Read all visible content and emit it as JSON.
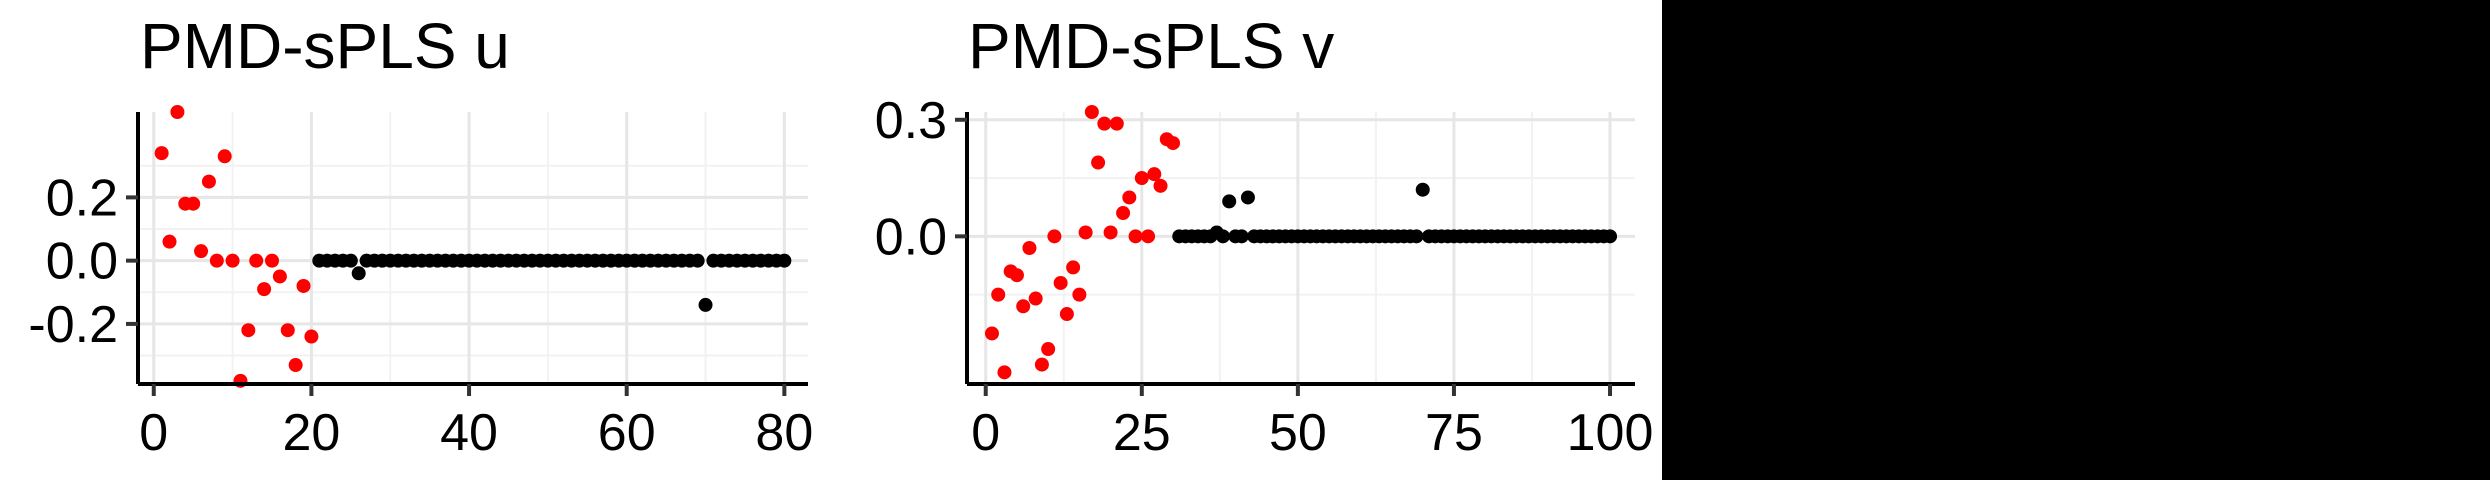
{
  "chart_data": [
    {
      "type": "scatter",
      "title": "PMD-sPLS u",
      "xlabel": "",
      "ylabel": "",
      "xlim": [
        -2,
        83
      ],
      "ylim": [
        -0.39,
        0.47
      ],
      "xticks": [
        0,
        20,
        40,
        60,
        80
      ],
      "yticks": [
        -0.2,
        0.0,
        0.2
      ],
      "ytick_labels": [
        "-0.2",
        "0.0",
        "0.2"
      ],
      "grid": true,
      "series": [
        {
          "color": "#ff0000",
          "points": [
            [
              1,
              0.34
            ],
            [
              2,
              0.06
            ],
            [
              3,
              0.47
            ],
            [
              4,
              0.18
            ],
            [
              5,
              0.18
            ],
            [
              6,
              0.03
            ],
            [
              7,
              0.25
            ],
            [
              8,
              0.0
            ],
            [
              9,
              0.33
            ],
            [
              10,
              0.0
            ],
            [
              11,
              -0.38
            ],
            [
              12,
              -0.22
            ],
            [
              13,
              0.0
            ],
            [
              14,
              -0.09
            ],
            [
              15,
              0.0
            ],
            [
              16,
              -0.05
            ],
            [
              17,
              -0.22
            ],
            [
              18,
              -0.33
            ],
            [
              19,
              -0.08
            ],
            [
              20,
              -0.24
            ]
          ]
        },
        {
          "color": "#000000",
          "points": [
            [
              21,
              0
            ],
            [
              22,
              0
            ],
            [
              23,
              0
            ],
            [
              24,
              0
            ],
            [
              25,
              0
            ],
            [
              26,
              -0.04
            ],
            [
              27,
              0
            ],
            [
              28,
              0
            ],
            [
              29,
              0
            ],
            [
              30,
              0
            ],
            [
              31,
              0
            ],
            [
              32,
              0
            ],
            [
              33,
              0
            ],
            [
              34,
              0
            ],
            [
              35,
              0
            ],
            [
              36,
              0
            ],
            [
              37,
              0
            ],
            [
              38,
              0
            ],
            [
              39,
              0
            ],
            [
              40,
              0
            ],
            [
              41,
              0
            ],
            [
              42,
              0
            ],
            [
              43,
              0
            ],
            [
              44,
              0
            ],
            [
              45,
              0
            ],
            [
              46,
              0
            ],
            [
              47,
              0
            ],
            [
              48,
              0
            ],
            [
              49,
              0
            ],
            [
              50,
              0
            ],
            [
              51,
              0
            ],
            [
              52,
              0
            ],
            [
              53,
              0
            ],
            [
              54,
              0
            ],
            [
              55,
              0
            ],
            [
              56,
              0
            ],
            [
              57,
              0
            ],
            [
              58,
              0
            ],
            [
              59,
              0
            ],
            [
              60,
              0
            ],
            [
              61,
              0
            ],
            [
              62,
              0
            ],
            [
              63,
              0
            ],
            [
              64,
              0
            ],
            [
              65,
              0
            ],
            [
              66,
              0
            ],
            [
              67,
              0
            ],
            [
              68,
              0
            ],
            [
              69,
              0
            ],
            [
              70,
              -0.14
            ],
            [
              71,
              0
            ],
            [
              72,
              0
            ],
            [
              73,
              0
            ],
            [
              74,
              0
            ],
            [
              75,
              0
            ],
            [
              76,
              0
            ],
            [
              77,
              0
            ],
            [
              78,
              0
            ],
            [
              79,
              0
            ],
            [
              80,
              0
            ]
          ]
        }
      ]
    },
    {
      "type": "scatter",
      "title": "PMD-sPLS v",
      "xlabel": "",
      "ylabel": "",
      "xlim": [
        -3,
        104
      ],
      "ylim": [
        -0.38,
        0.32
      ],
      "xticks": [
        0,
        25,
        50,
        75,
        100
      ],
      "yticks": [
        0.0,
        0.3
      ],
      "ytick_labels": [
        "0.0",
        "0.3"
      ],
      "grid": true,
      "series": [
        {
          "color": "#ff0000",
          "points": [
            [
              1,
              -0.25
            ],
            [
              2,
              -0.15
            ],
            [
              3,
              -0.35
            ],
            [
              4,
              -0.09
            ],
            [
              5,
              -0.1
            ],
            [
              6,
              -0.18
            ],
            [
              7,
              -0.03
            ],
            [
              8,
              -0.16
            ],
            [
              9,
              -0.33
            ],
            [
              10,
              -0.29
            ],
            [
              11,
              0.0
            ],
            [
              12,
              -0.12
            ],
            [
              13,
              -0.2
            ],
            [
              14,
              -0.08
            ],
            [
              15,
              -0.15
            ],
            [
              16,
              0.01
            ],
            [
              17,
              0.32
            ],
            [
              18,
              0.19
            ],
            [
              19,
              0.29
            ],
            [
              20,
              0.01
            ],
            [
              21,
              0.29
            ],
            [
              22,
              0.06
            ],
            [
              23,
              0.1
            ],
            [
              24,
              0.0
            ],
            [
              25,
              0.15
            ],
            [
              26,
              0.0
            ],
            [
              27,
              0.16
            ],
            [
              28,
              0.13
            ],
            [
              29,
              0.25
            ],
            [
              30,
              0.24
            ]
          ]
        },
        {
          "color": "#000000",
          "points": [
            [
              31,
              0
            ],
            [
              32,
              0
            ],
            [
              33,
              0
            ],
            [
              34,
              0
            ],
            [
              35,
              0
            ],
            [
              36,
              0
            ],
            [
              37,
              0.01
            ],
            [
              38,
              0
            ],
            [
              39,
              0.09
            ],
            [
              40,
              0
            ],
            [
              41,
              0
            ],
            [
              42,
              0.1
            ],
            [
              43,
              0
            ],
            [
              44,
              0
            ],
            [
              45,
              0
            ],
            [
              46,
              0
            ],
            [
              47,
              0
            ],
            [
              48,
              0
            ],
            [
              49,
              0
            ],
            [
              50,
              0
            ],
            [
              51,
              0
            ],
            [
              52,
              0
            ],
            [
              53,
              0
            ],
            [
              54,
              0
            ],
            [
              55,
              0
            ],
            [
              56,
              0
            ],
            [
              57,
              0
            ],
            [
              58,
              0
            ],
            [
              59,
              0
            ],
            [
              60,
              0
            ],
            [
              61,
              0
            ],
            [
              62,
              0
            ],
            [
              63,
              0
            ],
            [
              64,
              0
            ],
            [
              65,
              0
            ],
            [
              66,
              0
            ],
            [
              67,
              0
            ],
            [
              68,
              0
            ],
            [
              69,
              0
            ],
            [
              70,
              0.12
            ],
            [
              71,
              0
            ],
            [
              72,
              0
            ],
            [
              73,
              0
            ],
            [
              74,
              0
            ],
            [
              75,
              0
            ],
            [
              76,
              0
            ],
            [
              77,
              0
            ],
            [
              78,
              0
            ],
            [
              79,
              0
            ],
            [
              80,
              0
            ],
            [
              81,
              0
            ],
            [
              82,
              0
            ],
            [
              83,
              0
            ],
            [
              84,
              0
            ],
            [
              85,
              0
            ],
            [
              86,
              0
            ],
            [
              87,
              0
            ],
            [
              88,
              0
            ],
            [
              89,
              0
            ],
            [
              90,
              0
            ],
            [
              91,
              0
            ],
            [
              92,
              0
            ],
            [
              93,
              0
            ],
            [
              94,
              0
            ],
            [
              95,
              0
            ],
            [
              96,
              0
            ],
            [
              97,
              0
            ],
            [
              98,
              0
            ],
            [
              99,
              0
            ],
            [
              100,
              0
            ]
          ]
        }
      ]
    }
  ]
}
